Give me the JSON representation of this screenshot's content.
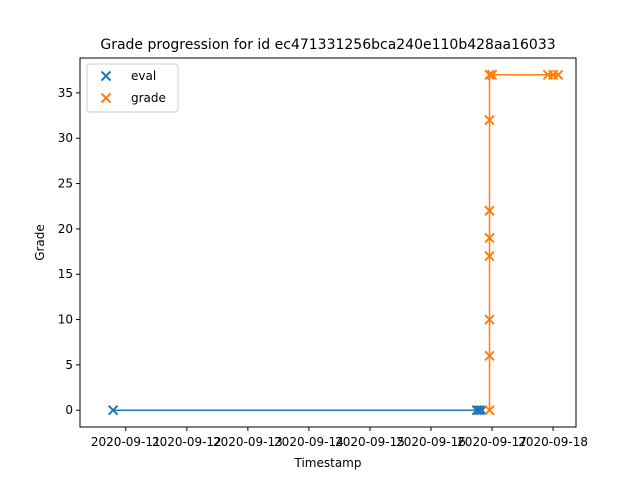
{
  "chart_data": {
    "type": "line",
    "title": "Grade progression for id ec471331256bca240e110b428aa16033",
    "xlabel": "Timestamp",
    "ylabel": "Grade",
    "x_ticks": [
      "2020-09-11",
      "2020-09-12",
      "2020-09-13",
      "2020-09-14",
      "2020-09-15",
      "2020-09-16",
      "2020-09-17",
      "2020-09-18"
    ],
    "y_ticks": [
      0,
      5,
      10,
      15,
      20,
      25,
      30,
      35
    ],
    "ylim": [
      -1.85,
      38.85
    ],
    "xlim": [
      "2020-09-10T06:00",
      "2020-09-18T09:00"
    ],
    "grid": false,
    "legend_position": "upper-left",
    "series": [
      {
        "name": "eval",
        "color": "#1f77b4",
        "marker": "x",
        "x": [
          "2020-09-10T19:00",
          "2020-09-16T18:00",
          "2020-09-16T19:00",
          "2020-09-16T20:00"
        ],
        "y": [
          0,
          0,
          0,
          0
        ]
      },
      {
        "name": "grade",
        "color": "#ff7f0e",
        "marker": "x",
        "x": [
          "2020-09-16T23:00",
          "2020-09-16T23:00",
          "2020-09-16T23:00",
          "2020-09-16T23:00",
          "2020-09-16T23:00",
          "2020-09-16T23:00",
          "2020-09-16T23:00",
          "2020-09-16T23:00",
          "2020-09-17T00:00",
          "2020-09-17T22:00",
          "2020-09-18T00:00",
          "2020-09-18T02:00"
        ],
        "y": [
          0,
          6,
          10,
          17,
          19,
          22,
          32,
          37,
          37,
          37,
          37,
          37
        ]
      }
    ]
  }
}
